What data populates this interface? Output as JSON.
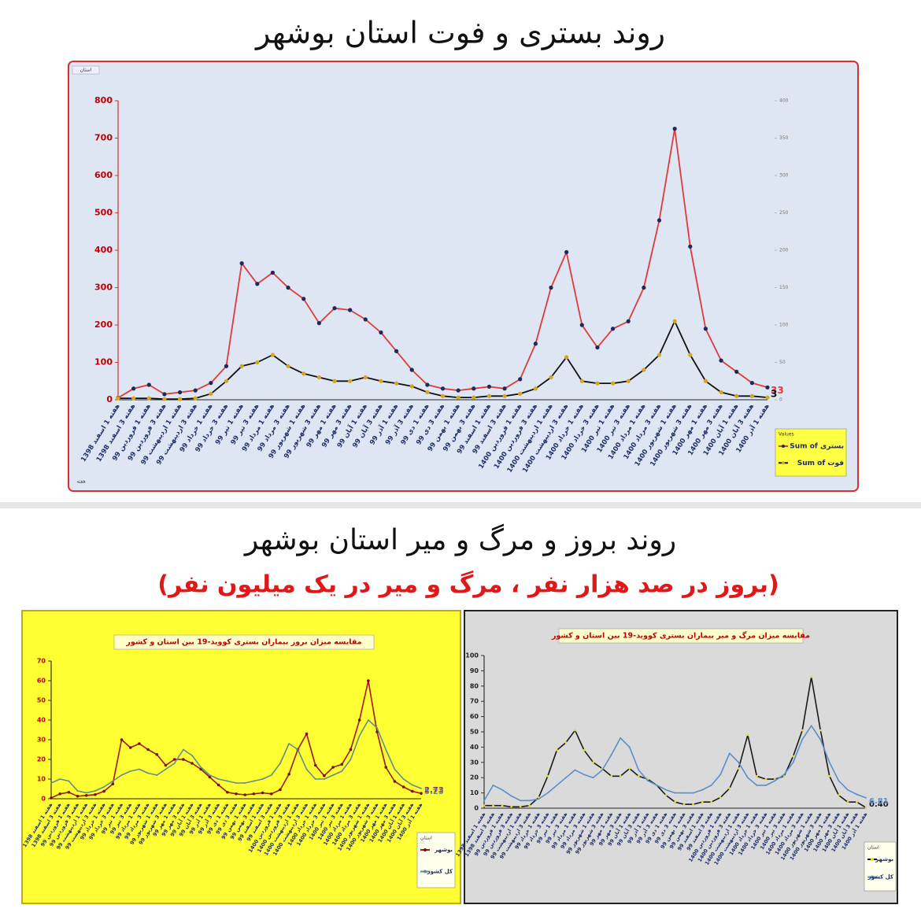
{
  "header": {
    "title": "روند بستری و فوت استان بوشهر",
    "section_title": "روند بروز و مرگ و میر استان بوشهر",
    "section_subtitle": "(بروز در صد هزار نفر ، مرگ و میر در یک میلیون نفر)"
  },
  "chart_data": [
    {
      "type": "line",
      "filter_label": "استان",
      "axis_field": "هفته",
      "legend_title": "Values",
      "categories": [
        "هفته 1 اسفند 1398",
        "هفته 3 اسفند 1398",
        "هفته 1 فروردین 99",
        "هفته 3 فروردین 99",
        "هفته 1 اردیبهشت 99",
        "هفته 3 اردیبهشت 99",
        "هفته 1 خرداد 99",
        "هفته 3 خرداد 99",
        "هفته 1 تیر 99",
        "هفته 3 تیر 99",
        "هفته 1 مرداد 99",
        "هفته 3 مرداد 99",
        "هفته 1 شهریور 99",
        "هفته 3 شهریور 99",
        "هفته 1 مهر 99",
        "هفته 3 مهر 99",
        "هفته 1 آبان 99",
        "هفته 3 آبان 99",
        "هفته 1 آذر 99",
        "هفته 3 آذر 99",
        "هفته 1 دی 99",
        "هفته 3 دی 99",
        "هفته 1 بهمن 99",
        "هفته 3 بهمن 99",
        "هفته 1 اسفند 99",
        "هفته 3 اسفند 99",
        "هفته 1 فروردین 1400",
        "هفته 3 فروردین 1400",
        "هفته 1 اردیبهشت 1400",
        "هفته 3 اردیبهشت 1400",
        "هفته 1 خرداد 1400",
        "هفته 3 خرداد 1400",
        "هفته 1 تیر 1400",
        "هفته 3 تیر 1400",
        "هفته 1 مرداد 1400",
        "هفته 3 مرداد 1400",
        "هفته 1 شهریور 1400",
        "هفته 3 شهریور 1400",
        "هفته 1 مهر 1400",
        "هفته 3 مهر 1400",
        "هفته 1 آبان 1400",
        "هفته 3 آبان 1400",
        "هفته 1 آذر 1400"
      ],
      "series": [
        {
          "name": "Sum of بستری",
          "color": "#e03a3a",
          "marker_color": "#1f2a5c",
          "values": [
            5,
            30,
            40,
            15,
            20,
            25,
            45,
            90,
            365,
            310,
            340,
            300,
            270,
            205,
            245,
            240,
            215,
            180,
            130,
            80,
            40,
            30,
            25,
            30,
            35,
            30,
            55,
            150,
            300,
            395,
            200,
            140,
            190,
            210,
            300,
            480,
            725,
            410,
            190,
            105,
            75,
            45,
            33
          ]
        },
        {
          "name": "Sum of فوت",
          "color": "#111111",
          "marker_color": "#d9a520",
          "axis": "y2",
          "values": [
            2,
            2,
            2,
            1,
            1,
            2,
            8,
            25,
            45,
            50,
            60,
            45,
            35,
            30,
            25,
            25,
            30,
            25,
            22,
            18,
            10,
            5,
            3,
            3,
            5,
            5,
            8,
            15,
            30,
            57,
            25,
            22,
            22,
            25,
            40,
            60,
            105,
            60,
            25,
            10,
            5,
            5,
            3
          ]
        }
      ],
      "ylim": [
        0,
        800
      ],
      "yticks": [
        0,
        100,
        200,
        300,
        400,
        500,
        600,
        700,
        800
      ],
      "y2lim": [
        0,
        400
      ],
      "y2ticks": [
        0,
        50,
        100,
        150,
        200,
        250,
        300,
        350,
        400
      ]
    },
    {
      "type": "line",
      "title": "مقایسه میزان بروز بیماران بستری کووید-19 بین استان و کشور",
      "legend_title": "استان",
      "categories": [
        "هفته 1 اسفند 1398",
        "هفته 3 اسفند 1398",
        "هفته 1 فروردین 99",
        "هفته 3 فروردین 99",
        "هفته 1 اردیبهشت 99",
        "هفته 3 اردیبهشت 99",
        "هفته 1 خرداد 99",
        "هفته 3 خرداد 99",
        "هفته 1 تیر 99",
        "هفته 3 تیر 99",
        "هفته 1 مرداد 99",
        "هفته 3 مرداد 99",
        "هفته 1 شهریور 99",
        "هفته 3 شهریور 99",
        "هفته 1 مهر 99",
        "هفته 3 مهر 99",
        "هفته 1 آبان 99",
        "هفته 3 آبان 99",
        "هفته 1 آذر 99",
        "هفته 3 آذر 99",
        "هفته 1 دی 99",
        "هفته 3 دی 99",
        "هفته 1 بهمن 99",
        "هفته 3 بهمن 99",
        "هفته 1 اسفند 99",
        "هفته 3 اسفند 99",
        "هفته 1 فروردین 1400",
        "هفته 3 فروردین 1400",
        "هفته 1 اردیبهشت 1400",
        "هفته 3 اردیبهشت 1400",
        "هفته 1 خرداد 1400",
        "هفته 3 خرداد 1400",
        "هفته 1 تیر 1400",
        "هفته 3 تیر 1400",
        "هفته 1 مرداد 1400",
        "هفته 3 مرداد 1400",
        "هفته 1 شهریور 1400",
        "هفته 3 شهریور 1400",
        "هفته 1 مهر 1400",
        "هفته 3 مهر 1400",
        "هفته 1 آبان 1400",
        "هفته 3 آبان 1400",
        "هفته 1 آذر 1400"
      ],
      "series": [
        {
          "name": "بوشهر",
          "color": "#a01818",
          "marker_color": "#7a0f0f",
          "values": [
            0.4,
            2.5,
            3.3,
            1.3,
            1.7,
            2.1,
            3.8,
            7.5,
            30,
            26,
            28,
            25,
            22.5,
            17,
            20,
            20,
            18,
            15,
            11,
            7,
            3.3,
            2.5,
            2,
            2.5,
            3,
            2.5,
            4.6,
            12.5,
            25,
            33,
            17,
            11.7,
            16,
            17.5,
            25,
            40,
            60,
            34,
            16,
            8.8,
            6,
            3.8,
            2.73
          ]
        },
        {
          "name": "کل کشور",
          "color": "#5e8f8a",
          "values": [
            8,
            10,
            9,
            4,
            3,
            4,
            6,
            9,
            12,
            14,
            15,
            13,
            12,
            15,
            18,
            25,
            22,
            16,
            12,
            10,
            9,
            8,
            8,
            9,
            10,
            12,
            18,
            28,
            25,
            15,
            10,
            10,
            12,
            14,
            20,
            32,
            40,
            36,
            25,
            15,
            10,
            7,
            5.23
          ]
        }
      ],
      "ylim": [
        0,
        70
      ],
      "yticks": [
        0,
        10,
        20,
        30,
        40,
        50,
        60,
        70
      ]
    },
    {
      "type": "line",
      "title": "مقایسه میزان مرگ و میر بیماران بستری کووید-19 بین استان و کشور",
      "legend_title": "استان",
      "categories": [
        "هفته 1 اسفند 1398",
        "هفته 3 اسفند 1398",
        "هفته 1 فروردین 99",
        "هفته 3 فروردین 99",
        "هفته 1 اردیبهشت 99",
        "هفته 3 اردیبهشت 99",
        "هفته 1 خرداد 99",
        "هفته 3 خرداد 99",
        "هفته 1 تیر 99",
        "هفته 3 تیر 99",
        "هفته 1 مرداد 99",
        "هفته 3 مرداد 99",
        "هفته 1 شهریور 99",
        "هفته 3 شهریور 99",
        "هفته 1 مهر 99",
        "هفته 3 مهر 99",
        "هفته 1 آبان 99",
        "هفته 3 آبان 99",
        "هفته 1 آذر 99",
        "هفته 3 آذر 99",
        "هفته 1 دی 99",
        "هفته 3 دی 99",
        "هفته 1 بهمن 99",
        "هفته 3 بهمن 99",
        "هفته 1 اسفند 99",
        "هفته 3 اسفند 99",
        "هفته 1 فروردین 1400",
        "هفته 3 فروردین 1400",
        "هفته 1 اردیبهشت 1400",
        "هفته 3 اردیبهشت 1400",
        "هفته 1 خرداد 1400",
        "هفته 3 خرداد 1400",
        "هفته 1 تیر 1400",
        "هفته 3 تیر 1400",
        "هفته 1 مرداد 1400",
        "هفته 3 مرداد 1400",
        "هفته 1 شهریور 1400",
        "هفته 3 شهریور 1400",
        "هفته 1 مهر 1400",
        "هفته 3 مهر 1400",
        "هفته 1 آبان 1400",
        "هفته 3 آبان 1400",
        "هفته 1 آذر 1400"
      ],
      "series": [
        {
          "name": "بوشهر",
          "color": "#1a1a1a",
          "marker_color": "#e8d820",
          "values": [
            1.7,
            1.7,
            1.7,
            0.9,
            0.9,
            1.7,
            7,
            21,
            38,
            43,
            51,
            38,
            30,
            26,
            21,
            21,
            26,
            21,
            19,
            15,
            8.5,
            4,
            2.5,
            2.5,
            4,
            4,
            7,
            13,
            26,
            48,
            21,
            19,
            19,
            21,
            34,
            51,
            86,
            51,
            21,
            8.5,
            4,
            4,
            0.4
          ],
          "value_labels": [
            null,
            null,
            null,
            null,
            null,
            null,
            null,
            null,
            null,
            null,
            null,
            null,
            null,
            null,
            null,
            null,
            null,
            null,
            null,
            null,
            null,
            null,
            null,
            null,
            null,
            null,
            null,
            null,
            null,
            null,
            null,
            null,
            null,
            null,
            null,
            null,
            null,
            null,
            null,
            null,
            null,
            null,
            "0.40"
          ]
        },
        {
          "name": "کل کشور",
          "color": "#5b8fc7",
          "values": [
            5,
            15,
            12,
            8,
            5,
            5,
            6,
            10,
            15,
            20,
            25,
            22,
            20,
            25,
            35,
            46,
            40,
            25,
            18,
            15,
            12,
            10,
            10,
            10,
            12,
            15,
            22,
            36,
            30,
            20,
            15,
            15,
            18,
            22,
            30,
            45,
            54,
            45,
            30,
            18,
            12,
            9,
            6.81
          ]
        }
      ],
      "ylim": [
        0,
        100
      ],
      "yticks": [
        0,
        10,
        20,
        30,
        40,
        50,
        60,
        70,
        80,
        90,
        100
      ]
    }
  ]
}
